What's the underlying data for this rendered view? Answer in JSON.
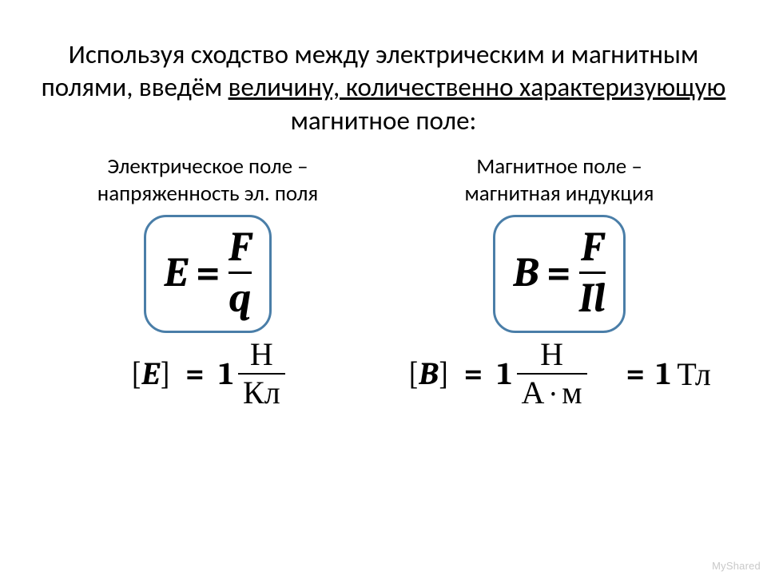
{
  "title": {
    "before": "Используя сходство между электрическим и магнитным полями, введём ",
    "underlined": "величину, количественно характеризующую",
    "after": " магнитное поле:",
    "fontsize": 33,
    "color": "#000000"
  },
  "left": {
    "subtitle_line1": "Электрическое поле –",
    "subtitle_line2": "напряженность эл. поля",
    "subtitle_fontsize": 27,
    "formula": {
      "lhs": "E",
      "eq": "=",
      "num": "F",
      "den": "q",
      "font_size": 52,
      "box_border_color": "#4a7ea8",
      "box_border_width": 3,
      "box_border_radius": 28
    },
    "units": {
      "bracket_open": "[",
      "var": "E",
      "bracket_close": "]",
      "eq": "=",
      "one": "1",
      "num": "Н",
      "den": "Кл",
      "font_size": 40
    }
  },
  "right": {
    "subtitle_line1": "Магнитное поле –",
    "subtitle_line2": "магнитная индукция",
    "subtitle_fontsize": 27,
    "formula": {
      "lhs": "B",
      "eq": "=",
      "num": "F",
      "den": "Il",
      "font_size": 52,
      "box_border_color": "#4a7ea8",
      "box_border_width": 3,
      "box_border_radius": 28
    },
    "units": {
      "bracket_open": "[",
      "var": "B",
      "bracket_close": "]",
      "eq": "=",
      "one": "1",
      "num": "Н",
      "den": "А · м",
      "font_size": 40,
      "second_eq": "=",
      "second_one": "1",
      "second_unit": "Тл"
    }
  },
  "watermark": "MyShared",
  "colors": {
    "background": "#ffffff",
    "text": "#000000",
    "box_border": "#4a7ea8",
    "watermark": "#c9c9c9"
  }
}
